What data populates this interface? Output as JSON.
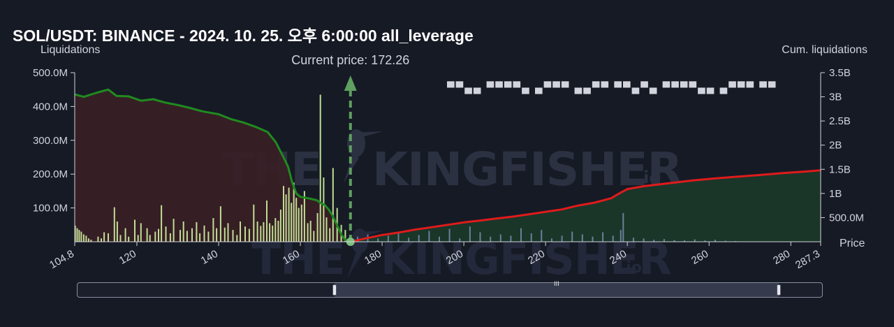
{
  "header": {
    "title": "SOL/USDT: BINANCE - 2024. 10. 25. 오후 6:00:00 all_leverage"
  },
  "watermark": {
    "text": "THE KINGFISHER",
    "suffix": ".io",
    "icon": "kingfisher-bird-icon"
  },
  "legend_placeholder": "▀▀▄▄ ▀▀▀▀▄ ▄▀▀▀ ▄▄▀▀ ▀▀▄▀▄ ▀▀▀▀▄▄ ▄▀▀▀ ▀▀",
  "colors": {
    "background": "#161a25",
    "long_cum_line": "#1f8b1f",
    "short_cum_line": "#e01b1b",
    "long_fill": "#3a1f26",
    "short_fill": "#1b3a2a",
    "long_bars": "#c9e89a",
    "short_bars": "#8da0c8",
    "current_price": "#5f9f5f"
  },
  "chart_data": {
    "type": "bar",
    "title": "SOL/USDT: BINANCE - 2024. 10. 25. 오후 6:00:00 all_leverage",
    "xlabel": "Price",
    "ylabel": "Liquidations",
    "y2label": "Cum. liquidations",
    "xlim": [
      104.8,
      287.3
    ],
    "ylim": [
      0,
      500000000
    ],
    "y2lim": [
      0,
      3500000000
    ],
    "x_ticks": [
      "104.8",
      "120",
      "140",
      "160",
      "180",
      "200",
      "220",
      "240",
      "260",
      "280",
      "287.3"
    ],
    "x_tick_values": [
      104.8,
      120,
      140,
      160,
      180,
      200,
      220,
      240,
      260,
      280,
      287.3
    ],
    "y_ticks": [
      "100.0M",
      "200.0M",
      "300.0M",
      "400.0M",
      "500.0M"
    ],
    "y_tick_values": [
      100000000,
      200000000,
      300000000,
      400000000,
      500000000
    ],
    "y2_ticks": [
      "500.0M",
      "1B",
      "1.5B",
      "2B",
      "2.5B",
      "3B",
      "3.5B"
    ],
    "y2_tick_values": [
      500000000,
      1000000000,
      1500000000,
      2000000000,
      2500000000,
      3000000000,
      3500000000
    ],
    "current_price": 172.26,
    "current_price_label": "Current price: 172.26",
    "grid": false,
    "series": [
      {
        "kind": "cumulative",
        "side": "long",
        "x": [
          104.8,
          107,
          110,
          113,
          115,
          118,
          121,
          124,
          127,
          130,
          133,
          136,
          140,
          143,
          146,
          149,
          152,
          154,
          156,
          157,
          158,
          159,
          160,
          162,
          164,
          165,
          166,
          167,
          168,
          169,
          170,
          171,
          172.26
        ],
        "y": [
          3050000000,
          3000000000,
          3080000000,
          3150000000,
          3020000000,
          3010000000,
          2920000000,
          2950000000,
          2880000000,
          2830000000,
          2770000000,
          2700000000,
          2640000000,
          2540000000,
          2470000000,
          2380000000,
          2270000000,
          2060000000,
          1730000000,
          1550000000,
          1230000000,
          1000000000,
          930000000,
          900000000,
          860000000,
          800000000,
          760000000,
          660000000,
          520000000,
          340000000,
          150000000,
          40000000,
          0
        ]
      },
      {
        "kind": "cumulative",
        "side": "short",
        "x": [
          172.26,
          176,
          180,
          184,
          188,
          192,
          196,
          200,
          204,
          208,
          212,
          216,
          220,
          224,
          228,
          232,
          236,
          238,
          240,
          244,
          248,
          252,
          256,
          260,
          266,
          272,
          278,
          283,
          287.3
        ],
        "y": [
          0,
          70000000,
          140000000,
          190000000,
          250000000,
          300000000,
          350000000,
          400000000,
          440000000,
          480000000,
          520000000,
          570000000,
          620000000,
          670000000,
          750000000,
          810000000,
          900000000,
          1000000000,
          1090000000,
          1150000000,
          1190000000,
          1230000000,
          1270000000,
          1300000000,
          1340000000,
          1380000000,
          1420000000,
          1450000000,
          1480000000
        ]
      },
      {
        "kind": "bars",
        "side": "long",
        "x": [
          104.9,
          105.4,
          105.9,
          106.4,
          107.0,
          107.6,
          108.2,
          108.8,
          110.5,
          111.3,
          112.0,
          113.0,
          114.5,
          115.2,
          116.0,
          117.2,
          118.0,
          119.5,
          120.3,
          121.0,
          122.5,
          123.2,
          124.5,
          125.3,
          126.0,
          127.1,
          128.2,
          129.0,
          130.6,
          131.4,
          132.3,
          133.5,
          134.6,
          135.4,
          136.5,
          137.5,
          138.7,
          139.5,
          140.5,
          141.5,
          142.3,
          143.5,
          144.5,
          145.3,
          146.5,
          147.5,
          148.6,
          149.5,
          150.3,
          151.0,
          151.8,
          152.5,
          153.2,
          153.9,
          154.6,
          155.2,
          155.9,
          156.5,
          157.2,
          157.8,
          158.4,
          159.0,
          159.6,
          160.3,
          161.0,
          161.8,
          162.5,
          163.3,
          164.2,
          164.9,
          165.7,
          166.4,
          167.2,
          168.0,
          169.0,
          170.0,
          171.0
        ],
        "y": [
          48000000,
          40000000,
          35000000,
          30000000,
          22000000,
          18000000,
          10000000,
          6000000,
          15000000,
          10000000,
          28000000,
          25000000,
          102000000,
          60000000,
          20000000,
          40000000,
          15000000,
          65000000,
          20000000,
          55000000,
          40000000,
          20000000,
          30000000,
          38000000,
          108000000,
          45000000,
          25000000,
          68000000,
          35000000,
          60000000,
          32000000,
          40000000,
          58000000,
          25000000,
          48000000,
          30000000,
          70000000,
          40000000,
          105000000,
          42000000,
          55000000,
          35000000,
          20000000,
          60000000,
          45000000,
          38000000,
          110000000,
          60000000,
          47000000,
          58000000,
          122000000,
          55000000,
          48000000,
          70000000,
          62000000,
          95000000,
          165000000,
          140000000,
          160000000,
          115000000,
          175000000,
          130000000,
          100000000,
          110000000,
          150000000,
          55000000,
          62000000,
          32000000,
          85000000,
          435000000,
          190000000,
          72000000,
          40000000,
          218000000,
          100000000,
          50000000,
          35000000
        ]
      },
      {
        "kind": "bars",
        "side": "short",
        "x": [
          174,
          176.5,
          179,
          181.5,
          184,
          186.5,
          189,
          191.5,
          194,
          196.5,
          199,
          201.5,
          204,
          206.5,
          209,
          211.5,
          214,
          216.5,
          219,
          221.5,
          224,
          226.5,
          229,
          231.5,
          234,
          236.5,
          238.4,
          239,
          241.5,
          244,
          246.5,
          249,
          251.5,
          254,
          256.5,
          259,
          261.5,
          264,
          266.5
        ],
        "y": [
          15000000,
          22000000,
          10000000,
          18000000,
          25000000,
          12000000,
          20000000,
          32000000,
          15000000,
          38000000,
          10000000,
          45000000,
          28000000,
          15000000,
          22000000,
          18000000,
          40000000,
          25000000,
          35000000,
          10000000,
          18000000,
          30000000,
          22000000,
          15000000,
          28000000,
          18000000,
          35000000,
          85000000,
          12000000,
          10000000,
          6000000,
          8000000,
          5000000,
          4000000,
          7000000,
          4000000,
          6000000,
          3000000,
          2000000
        ]
      }
    ]
  },
  "slider": {
    "grip_glyph": "III",
    "start": 0.345,
    "end": 0.942
  }
}
